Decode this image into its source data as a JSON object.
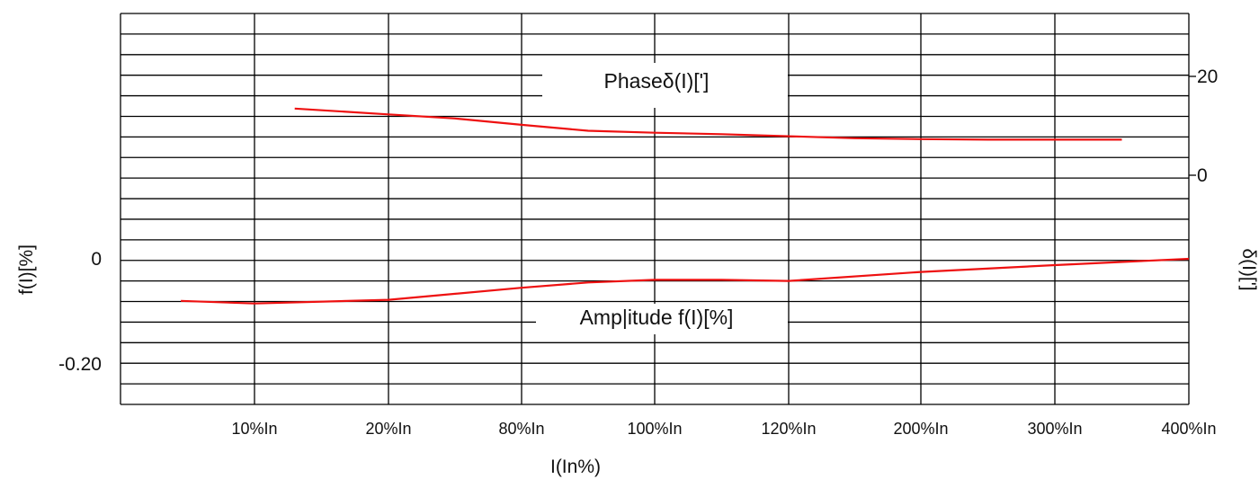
{
  "chart_data": {
    "type": "line",
    "x": {
      "label": "I(In%)",
      "categories": [
        "10%In",
        "20%In",
        "80%In",
        "100%In",
        "120%In",
        "200%In",
        "300%In",
        "400%In"
      ]
    },
    "left_axis": {
      "label": "f(I)[%]",
      "ticks": [
        {
          "value": 0,
          "label": "0"
        },
        {
          "value": -0.2,
          "label": "-0.20"
        }
      ]
    },
    "right_axis": {
      "label": "δ(I)[']",
      "ticks": [
        {
          "value": 20,
          "label": "20"
        },
        {
          "value": 0,
          "label": "0"
        }
      ]
    },
    "grid": true,
    "series": [
      {
        "name": "Phaseδ(I)[']",
        "axis": "right",
        "color": "#ee1111",
        "x": [
          0.3,
          1.0,
          1.5,
          2.0,
          2.5,
          3.0,
          3.5,
          4.0,
          4.5,
          5.0,
          5.5,
          6.0,
          6.5
        ],
        "values": [
          13.5,
          12.3,
          11.5,
          10.2,
          9.0,
          8.6,
          8.3,
          7.9,
          7.5,
          7.3,
          7.2,
          7.2,
          7.2
        ]
      },
      {
        "name": "Amplitude f(I)[%]",
        "axis": "left",
        "color": "#ee1111",
        "x": [
          -0.55,
          0.0,
          1.0,
          2.0,
          2.5,
          3.0,
          3.5,
          4.0,
          5.0,
          6.0,
          7.0
        ],
        "values": [
          -0.08,
          -0.085,
          -0.078,
          -0.055,
          -0.045,
          -0.04,
          -0.04,
          -0.042,
          -0.025,
          -0.012,
          0.0
        ]
      }
    ],
    "annotations": [
      "Phaseδ(I)[']",
      "Amp|itude f(I)[%]"
    ]
  }
}
